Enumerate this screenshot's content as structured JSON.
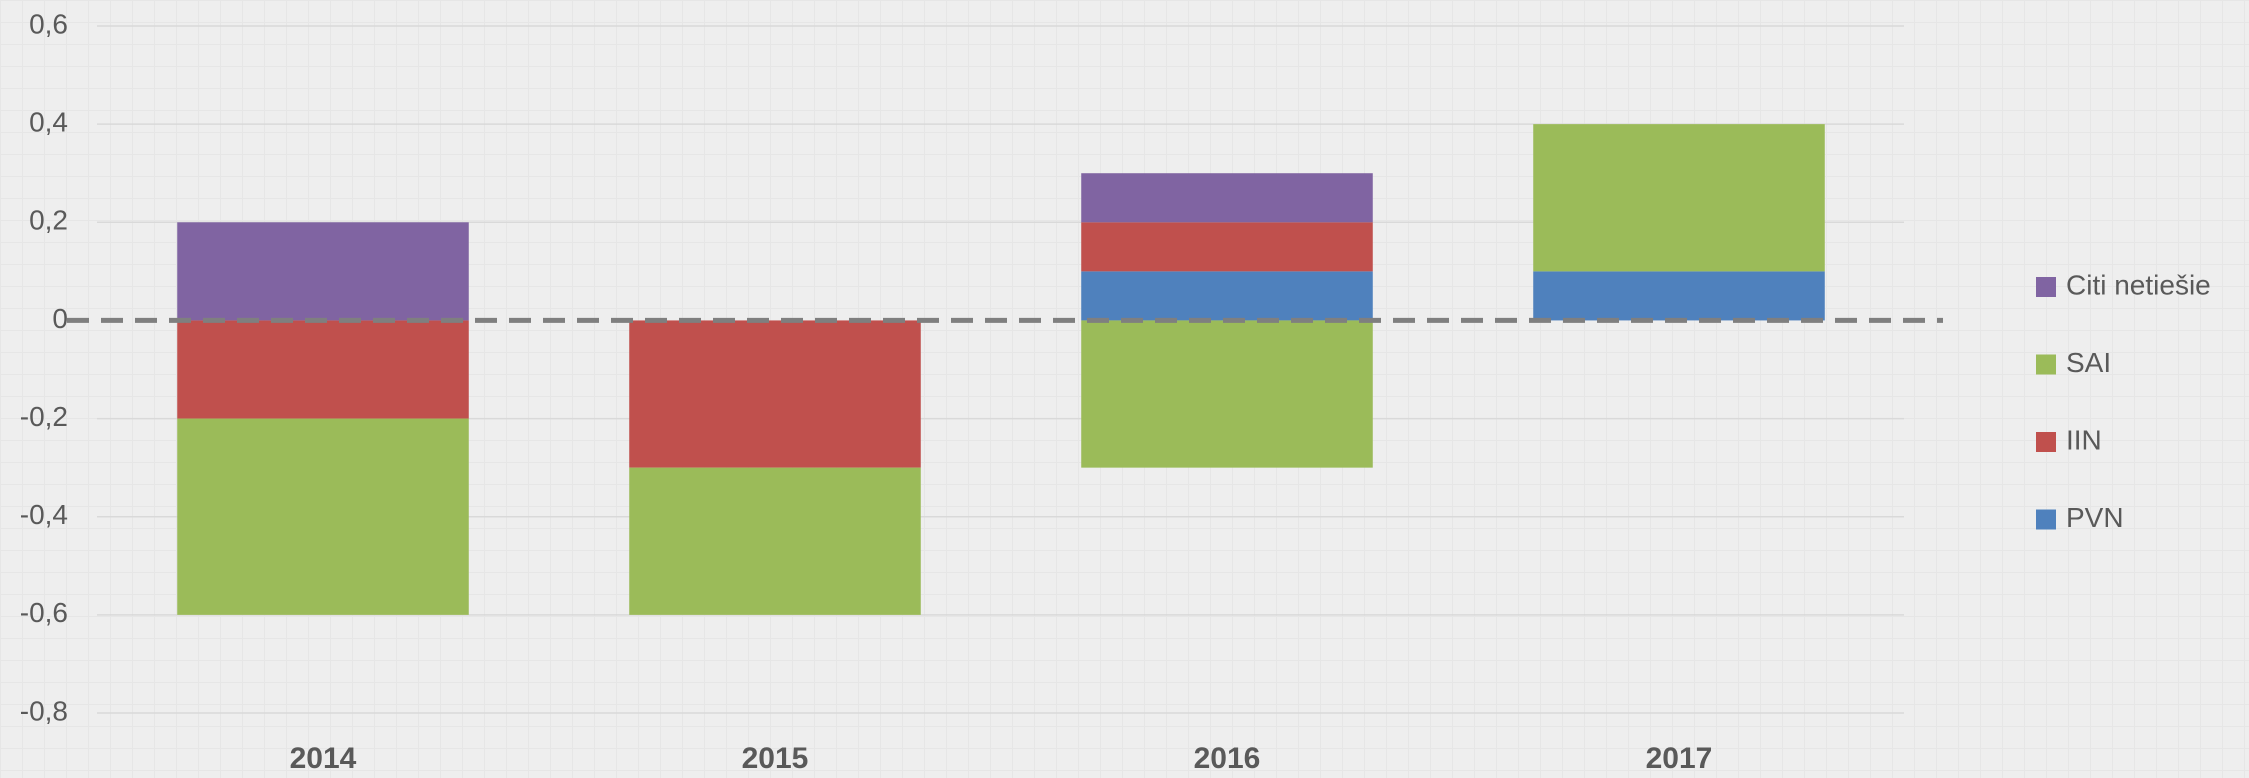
{
  "chart_data": {
    "type": "stacked_bar",
    "categories": [
      "2014",
      "2015",
      "2016",
      "2017"
    ],
    "series": [
      {
        "name": "PVN",
        "color": "#4f81bd",
        "values": [
          0,
          0,
          0.1,
          0.1
        ]
      },
      {
        "name": "IIN",
        "color": "#c0504d",
        "values": [
          -0.2,
          -0.3,
          0.1,
          0
        ]
      },
      {
        "name": "SAI",
        "color": "#9bbb59",
        "values": [
          -0.4,
          -0.3,
          -0.3,
          0.3
        ]
      },
      {
        "name": "Citi netiešie",
        "color": "#8064a2",
        "values": [
          0.2,
          0,
          0.1,
          0
        ]
      }
    ],
    "ylim": [
      -0.8,
      0.6
    ],
    "yticks": [
      {
        "value": 0.6,
        "label": "0,6"
      },
      {
        "value": 0.4,
        "label": "0,4"
      },
      {
        "value": 0.2,
        "label": "0,2"
      },
      0,
      {
        "value": -0.2,
        "label": "-0,2"
      },
      {
        "value": -0.4,
        "label": "-0,4"
      },
      {
        "value": -0.6,
        "label": "-0,6"
      },
      {
        "value": -0.8,
        "label": "-0,8"
      }
    ],
    "grid": true,
    "legend": "right"
  }
}
